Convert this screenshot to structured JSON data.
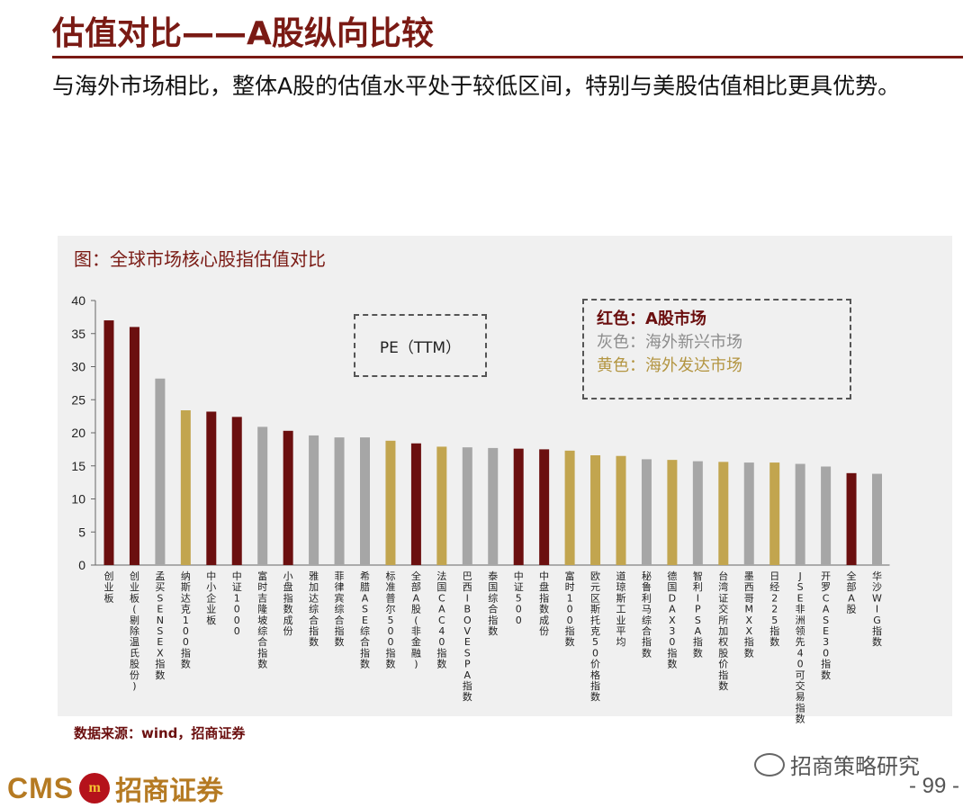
{
  "header": {
    "title": "估值对比——A股纵向比较",
    "intro": "与海外市场相比，整体A股的估值水平处于较低区间，特别与美股估值相比更具优势。"
  },
  "chart_panel": {
    "caption": "图：全球市场核心股指估值对比",
    "metric_box": "PE（TTM）",
    "legend": {
      "red": "红色：A股市场",
      "gray": "灰色：海外新兴市场",
      "gold": "黄色：海外发达市场"
    },
    "source": "数据来源：wind，招商证券"
  },
  "chart_data": {
    "type": "bar",
    "title": "全球市场核心股指估值对比",
    "ylabel": "",
    "xlabel": "",
    "ylim": [
      0,
      40
    ],
    "yticks": [
      0,
      5,
      10,
      15,
      20,
      25,
      30,
      35,
      40
    ],
    "grid": false,
    "legend_placement": "top-right",
    "colors": {
      "red": "#6b0f0f",
      "gray": "#a6a6a6",
      "gold": "#c2a54f"
    },
    "categories": [
      "创业板",
      "创业板(剔除温氏股份)",
      "孟买SENSEX指数",
      "纳斯达克100指数",
      "中小企业板",
      "中证1000",
      "富时吉隆坡综合指数",
      "小盘指数成份",
      "雅加达综合指数",
      "菲律宾综合指数",
      "希腊ASE综合指数",
      "标准普尔500指数",
      "全部A股(非金融)",
      "法国CAC40指数",
      "巴西IBOVESPA指数",
      "泰国综合指数",
      "中证500",
      "中盘指数成份",
      "富时100指数",
      "欧元区斯托克50价格指数",
      "道琼斯工业平均",
      "秘鲁利马综合指数",
      "德国DAX30指数",
      "智利IPSA指数",
      "台湾证交所加权股价指数",
      "墨西哥MXX指数",
      "日经225指数",
      "JSE非洲领先40可交易指数",
      "开罗CASE30指数",
      "全部A股",
      "华沙WIG指数"
    ],
    "values": [
      37.0,
      36.0,
      28.2,
      23.4,
      23.2,
      22.4,
      20.9,
      20.3,
      19.6,
      19.3,
      19.3,
      18.8,
      18.4,
      17.9,
      17.8,
      17.7,
      17.6,
      17.5,
      17.3,
      16.6,
      16.5,
      16.0,
      15.9,
      15.7,
      15.6,
      15.5,
      15.5,
      15.3,
      14.9,
      13.9,
      13.8
    ],
    "groups": [
      "red",
      "red",
      "gray",
      "gold",
      "red",
      "red",
      "gray",
      "red",
      "gray",
      "gray",
      "gray",
      "gold",
      "red",
      "gold",
      "gray",
      "gray",
      "red",
      "red",
      "gold",
      "gold",
      "gold",
      "gray",
      "gold",
      "gray",
      "gold",
      "gray",
      "gold",
      "gray",
      "gray",
      "red",
      "gray"
    ]
  },
  "footer": {
    "wechat": "招商策略研究",
    "logo_cms": "CMS",
    "logo_mark": "m",
    "logo_cn": "招商证券",
    "page": "- 99 -"
  }
}
